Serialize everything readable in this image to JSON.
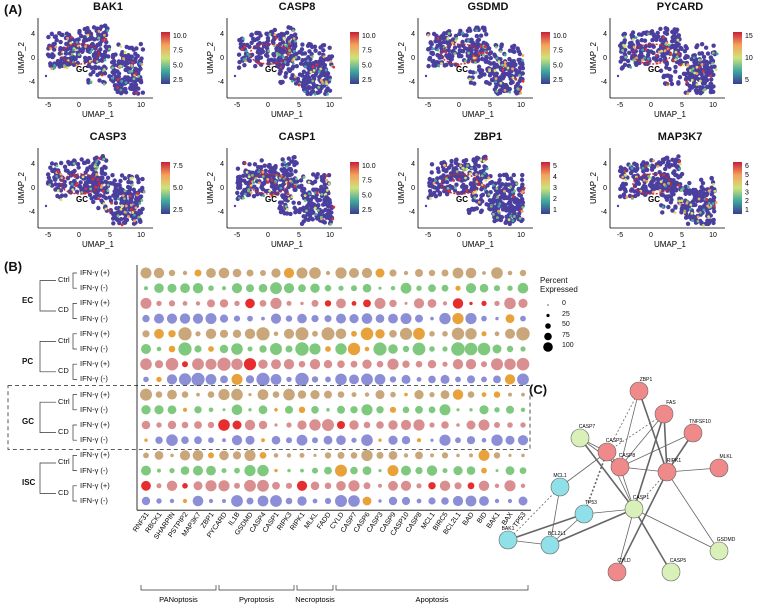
{
  "panels": {
    "a": "(A)",
    "b": "(B)",
    "c": "(C)"
  },
  "umap": {
    "xlabel": "UMAP_1",
    "ylabel": "UMAP_2",
    "region_label": "GC",
    "x_ticks": [
      "-5",
      "0",
      "5",
      "10"
    ],
    "y_ticks": [
      "4",
      "0",
      "-4"
    ],
    "plots": [
      {
        "gene": "BAK1",
        "ticks": [
          "10.0",
          "7.5",
          "5.0",
          "2.5"
        ]
      },
      {
        "gene": "CASP8",
        "ticks": [
          "10.0",
          "7.5",
          "5.0",
          "2.5"
        ]
      },
      {
        "gene": "GSDMD",
        "ticks": [
          "10.0",
          "7.5",
          "5.0",
          "2.5"
        ]
      },
      {
        "gene": "PYCARD",
        "ticks": [
          "15",
          "10",
          "5"
        ]
      },
      {
        "gene": "CASP3",
        "ticks": [
          "7.5",
          "5.0",
          "2.5"
        ]
      },
      {
        "gene": "CASP1",
        "ticks": [
          "10.0",
          "7.5",
          "5.0",
          "2.5"
        ]
      },
      {
        "gene": "ZBP1",
        "ticks": [
          "5",
          "4",
          "3",
          "2",
          "1"
        ]
      },
      {
        "gene": "MAP3K7",
        "ticks": [
          "6",
          "5",
          "4",
          "3",
          "2",
          "1"
        ]
      }
    ]
  },
  "dotplot": {
    "legend_title": "Percent Expressed",
    "legend_values": [
      "0",
      "25",
      "50",
      "75",
      "100"
    ],
    "row_labels": [
      "IFN-γ (+)",
      "IFN-γ (-)",
      "IFN-γ (+)",
      "IFN-γ (-)"
    ],
    "conditions": [
      "Ctrl",
      "CD"
    ],
    "cell_types": [
      "EC",
      "PC",
      "GC",
      "ISC"
    ],
    "genes": [
      "RNF31",
      "RBCK1",
      "SHARPIN",
      "PSTPIP2",
      "MAP3K7",
      "ZBP1",
      "PYCARD",
      "IL1B",
      "GSDMD",
      "CASP4",
      "CASP1",
      "RIPK3",
      "RIPK1",
      "MLKL",
      "FADD",
      "CYLD",
      "CASP7",
      "CASP6",
      "CASP3",
      "CASP9",
      "CASP10",
      "CASP8",
      "MCL1",
      "BIRC5",
      "BCL2L1",
      "BAD",
      "BID",
      "BAK1",
      "BAX",
      "TP53"
    ],
    "categories": [
      "PANoptosis",
      "Pyroptosis",
      "Necroptosis",
      "Apoptosis"
    ]
  },
  "network": {
    "nodes": [
      "ZBP1",
      "FAS",
      "TNFSF10",
      "CASP7",
      "CASP3",
      "CASP8",
      "RIPK1",
      "MLKL",
      "CASP1",
      "MCL1",
      "TP53",
      "BAK1",
      "BCL2L1",
      "CYLD",
      "CASP5",
      "GSDMD"
    ]
  },
  "colors": {
    "accent_red": "#d62728",
    "dot_tan": "#c9a77b",
    "dot_green": "#7fc97f",
    "dot_rose": "#d98f8f",
    "dot_blue": "#8c8fd6",
    "dot_orange": "#e8a23c",
    "dot_red": "#e62e2e"
  }
}
